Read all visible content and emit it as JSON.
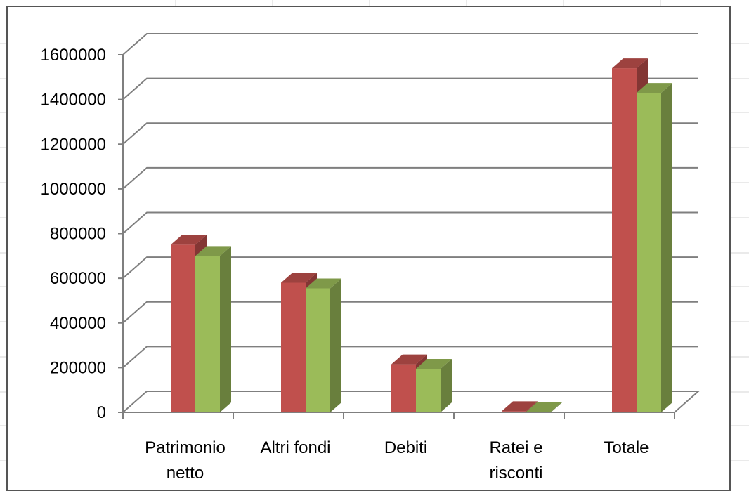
{
  "chart_data": {
    "type": "bar",
    "title": "",
    "xlabel": "",
    "ylabel": "",
    "categories": [
      "Patrimonio netto",
      "Altri fondi",
      "Debiti",
      "Ratei e risconti",
      "Totale"
    ],
    "category_lines": [
      [
        "Patrimonio",
        "netto"
      ],
      [
        "Altri fondi"
      ],
      [
        "Debiti"
      ],
      [
        "Ratei e",
        "risconti"
      ],
      [
        "Totale"
      ]
    ],
    "series": [
      {
        "values": [
          750000,
          580000,
          215000,
          5000,
          1540000
        ],
        "color": "#c0504d"
      },
      {
        "values": [
          700000,
          555000,
          195000,
          3000,
          1430000
        ],
        "color": "#9bbb59"
      }
    ],
    "ylim": [
      0,
      1600000
    ],
    "yticks": [
      "0",
      "200000",
      "400000",
      "600000",
      "800000",
      "1000000",
      "1200000",
      "1400000",
      "1600000"
    ],
    "grid": true,
    "style": "3d-clustered-column"
  }
}
